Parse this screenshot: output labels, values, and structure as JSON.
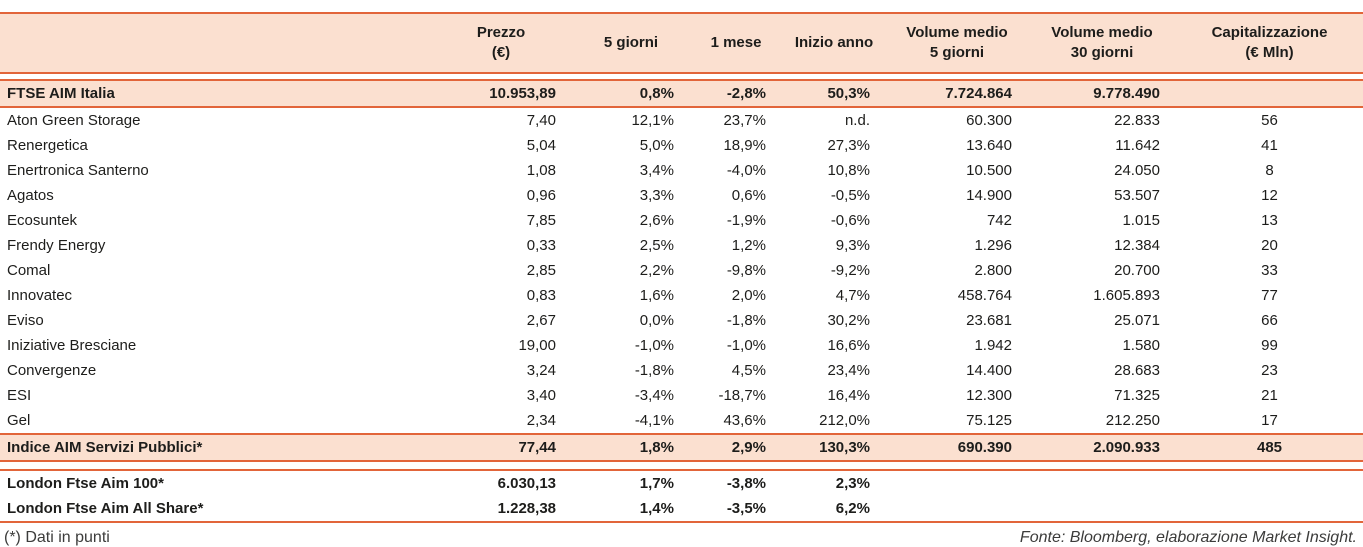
{
  "colors": {
    "band": "#fbe0d0",
    "border": "#e2653a",
    "text": "#1d1d1b",
    "footer_text": "#3c3c3b"
  },
  "chart_data": {
    "type": "table",
    "title": "",
    "header": [
      {
        "lines": [
          ""
        ]
      },
      {
        "lines": [
          "Prezzo",
          "(€)"
        ]
      },
      {
        "lines": [
          "5 giorni"
        ]
      },
      {
        "lines": [
          "1 mese"
        ]
      },
      {
        "lines": [
          "Inizio anno"
        ]
      },
      {
        "lines": [
          "Volume medio",
          "5 giorni"
        ]
      },
      {
        "lines": [
          "Volume medio",
          "30 giorni"
        ]
      },
      {
        "lines": [
          "Capitalizzazione",
          "(€ Mln)"
        ]
      }
    ],
    "rows": [
      {
        "name": "FTSE AIM Italia",
        "style": "index",
        "values": [
          "10.953,89",
          "0,8%",
          "-2,8%",
          "50,3%",
          "7.724.864",
          "9.778.490",
          ""
        ]
      },
      {
        "name": "Aton Green Storage",
        "style": "stock",
        "values": [
          "7,40",
          "12,1%",
          "23,7%",
          "n.d.",
          "60.300",
          "22.833",
          "56"
        ]
      },
      {
        "name": "Renergetica",
        "style": "stock",
        "values": [
          "5,04",
          "5,0%",
          "18,9%",
          "27,3%",
          "13.640",
          "11.642",
          "41"
        ]
      },
      {
        "name": "Enertronica Santerno",
        "style": "stock",
        "values": [
          "1,08",
          "3,4%",
          "-4,0%",
          "10,8%",
          "10.500",
          "24.050",
          "8"
        ]
      },
      {
        "name": "Agatos",
        "style": "stock",
        "values": [
          "0,96",
          "3,3%",
          "0,6%",
          "-0,5%",
          "14.900",
          "53.507",
          "12"
        ]
      },
      {
        "name": "Ecosuntek",
        "style": "stock",
        "values": [
          "7,85",
          "2,6%",
          "-1,9%",
          "-0,6%",
          "742",
          "1.015",
          "13"
        ]
      },
      {
        "name": "Frendy Energy",
        "style": "stock",
        "values": [
          "0,33",
          "2,5%",
          "1,2%",
          "9,3%",
          "1.296",
          "12.384",
          "20"
        ]
      },
      {
        "name": "Comal",
        "style": "stock",
        "values": [
          "2,85",
          "2,2%",
          "-9,8%",
          "-9,2%",
          "2.800",
          "20.700",
          "33"
        ]
      },
      {
        "name": "Innovatec",
        "style": "stock",
        "values": [
          "0,83",
          "1,6%",
          "2,0%",
          "4,7%",
          "458.764",
          "1.605.893",
          "77"
        ]
      },
      {
        "name": "Eviso",
        "style": "stock",
        "values": [
          "2,67",
          "0,0%",
          "-1,8%",
          "30,2%",
          "23.681",
          "25.071",
          "66"
        ]
      },
      {
        "name": "Iniziative Bresciane",
        "style": "stock",
        "values": [
          "19,00",
          "-1,0%",
          "-1,0%",
          "16,6%",
          "1.942",
          "1.580",
          "99"
        ]
      },
      {
        "name": "Convergenze",
        "style": "stock",
        "values": [
          "3,24",
          "-1,8%",
          "4,5%",
          "23,4%",
          "14.400",
          "28.683",
          "23"
        ]
      },
      {
        "name": "ESI",
        "style": "stock",
        "values": [
          "3,40",
          "-3,4%",
          "-18,7%",
          "16,4%",
          "12.300",
          "71.325",
          "21"
        ]
      },
      {
        "name": "Gel",
        "style": "stock",
        "values": [
          "2,34",
          "-4,1%",
          "43,6%",
          "212,0%",
          "75.125",
          "212.250",
          "17"
        ]
      },
      {
        "name": "Indice AIM Servizi Pubblici*",
        "style": "index",
        "values": [
          "77,44",
          "1,8%",
          "2,9%",
          "130,3%",
          "690.390",
          "2.090.933",
          "485"
        ]
      },
      {
        "name": "London Ftse Aim 100*",
        "style": "london",
        "values": [
          "6.030,13",
          "1,7%",
          "-3,8%",
          "2,3%",
          "",
          "",
          ""
        ]
      },
      {
        "name": "London Ftse Aim All Share*",
        "style": "london",
        "values": [
          "1.228,38",
          "1,4%",
          "-3,5%",
          "6,2%",
          "",
          "",
          ""
        ]
      }
    ]
  },
  "footer": {
    "note": "(*) Dati in punti",
    "source": "Fonte: Bloomberg, elaborazione Market Insight."
  }
}
